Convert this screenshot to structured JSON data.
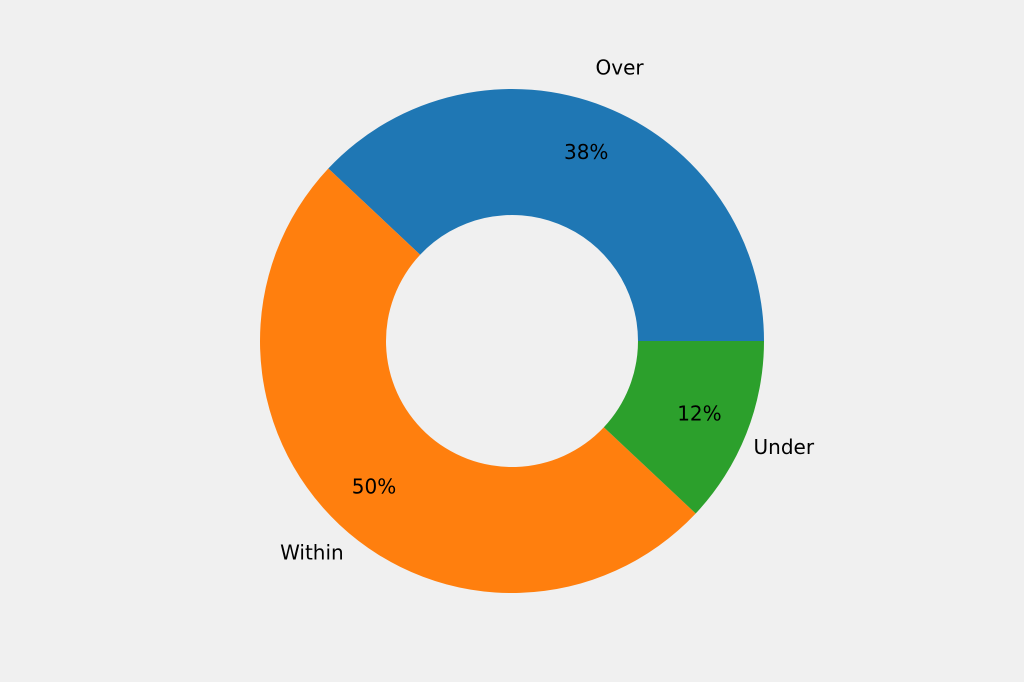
{
  "chart_data": {
    "type": "pie",
    "donut": true,
    "title": "",
    "start_angle_deg": 0,
    "direction": "counterclockwise",
    "slices": [
      {
        "label": "Over",
        "value": 38,
        "pct_label": "38%",
        "color": "#1f77b4"
      },
      {
        "label": "Within",
        "value": 50,
        "pct_label": "50%",
        "color": "#ff7f0e"
      },
      {
        "label": "Under",
        "value": 12,
        "pct_label": "12%",
        "color": "#2ca02c"
      }
    ],
    "background": "#f0f0f0"
  }
}
